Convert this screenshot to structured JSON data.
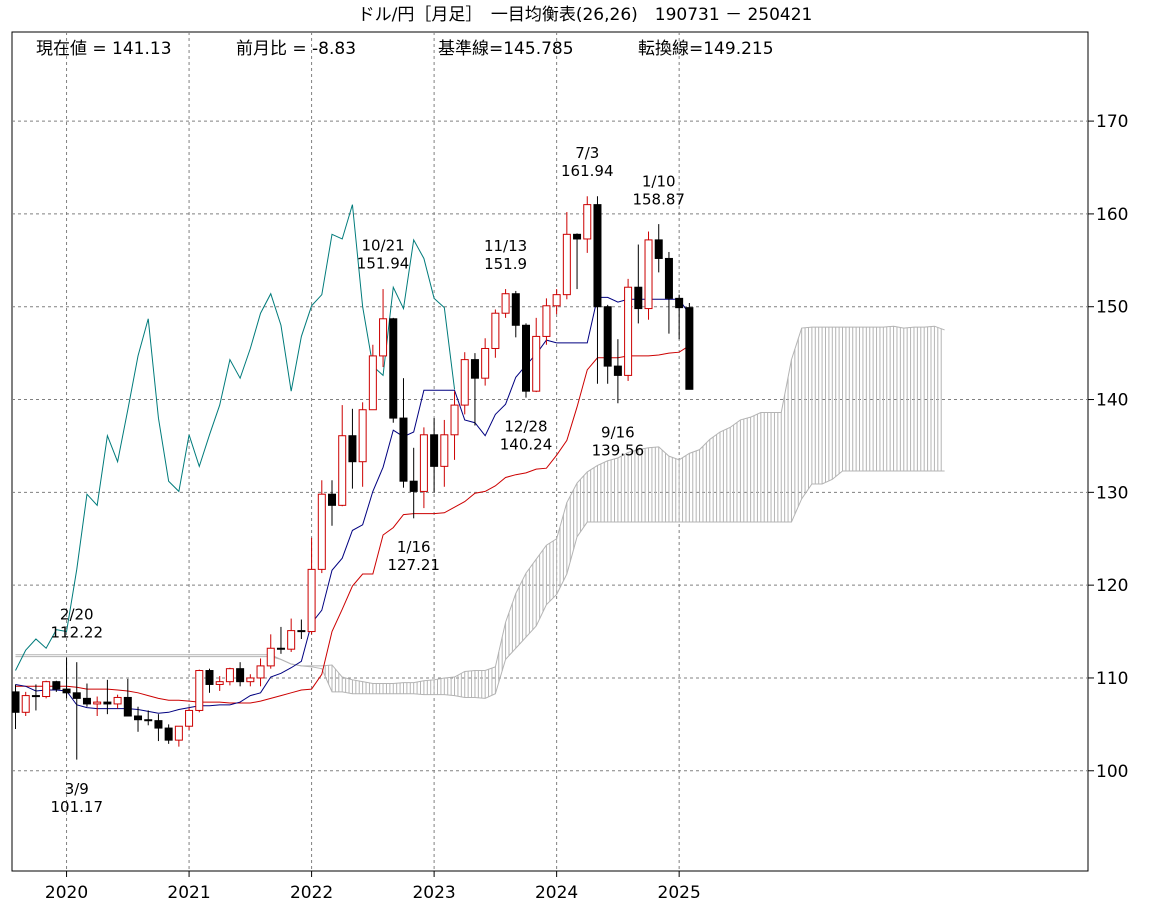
{
  "chart_data": {
    "type": "candlestick",
    "title": "ドル/円［月足］　一目均衡表(26,26)　190731 － 250421",
    "info": {
      "current": "現在値 = 141.13",
      "change": "前月比 = -8.83",
      "kijun": "基準線=145.785",
      "tenkan": "転換線=149.215"
    },
    "x_ticks": [
      "2020",
      "2021",
      "2022",
      "2023",
      "2024",
      "2025"
    ],
    "y_ticks": [
      100,
      110,
      120,
      130,
      140,
      150,
      160,
      170
    ],
    "ylim": [
      89.2,
      179.6
    ],
    "grid": true,
    "colors": {
      "up": "#cc0000",
      "down": "#000000",
      "tenkan": "#000080",
      "kijun": "#cc0000",
      "chikou": "#007b7b",
      "cloud": "#b4b4b4"
    },
    "candles": [
      [
        108.5,
        109.3,
        104.5,
        106.3
      ],
      [
        106.3,
        108.5,
        105.9,
        108.1
      ],
      [
        108.1,
        109.3,
        106.5,
        108.0
      ],
      [
        108.0,
        109.7,
        107.8,
        109.6
      ],
      [
        109.6,
        109.7,
        108.5,
        108.8
      ],
      [
        108.8,
        112.2,
        107.8,
        108.4
      ],
      [
        108.4,
        111.7,
        101.2,
        107.8
      ],
      [
        107.8,
        109.4,
        106.9,
        107.2
      ],
      [
        107.2,
        108.0,
        105.9,
        107.4
      ],
      [
        107.4,
        109.8,
        106.1,
        107.2
      ],
      [
        107.2,
        108.2,
        106.7,
        107.9
      ],
      [
        107.9,
        109.9,
        105.9,
        105.9
      ],
      [
        105.9,
        106.9,
        104.2,
        105.5
      ],
      [
        105.5,
        106.5,
        104.9,
        105.4
      ],
      [
        105.4,
        106.1,
        103.2,
        104.6
      ],
      [
        104.6,
        105.0,
        102.9,
        103.3
      ],
      [
        103.3,
        104.0,
        102.6,
        104.8
      ],
      [
        104.8,
        106.8,
        104.4,
        106.5
      ],
      [
        106.5,
        110.9,
        106.3,
        110.8
      ],
      [
        110.8,
        111.0,
        108.4,
        109.3
      ],
      [
        109.3,
        110.2,
        108.6,
        109.6
      ],
      [
        109.6,
        111.1,
        109.2,
        111.0
      ],
      [
        111.0,
        111.7,
        109.1,
        109.6
      ],
      [
        109.6,
        110.4,
        109.1,
        110.0
      ],
      [
        110.0,
        112.1,
        109.1,
        111.3
      ],
      [
        111.3,
        114.7,
        111.0,
        113.2
      ],
      [
        113.2,
        115.5,
        112.6,
        113.1
      ],
      [
        113.1,
        116.4,
        112.8,
        115.1
      ],
      [
        115.1,
        116.3,
        114.2,
        115.0
      ],
      [
        115.0,
        125.1,
        114.7,
        121.7
      ],
      [
        121.7,
        131.3,
        121.3,
        129.8
      ],
      [
        129.8,
        131.3,
        126.4,
        128.6
      ],
      [
        128.6,
        139.4,
        128.5,
        136.1
      ],
      [
        136.1,
        139.0,
        130.4,
        133.3
      ],
      [
        133.3,
        139.7,
        130.6,
        138.9
      ],
      [
        138.9,
        145.9,
        138.9,
        144.7
      ],
      [
        144.7,
        151.9,
        143.5,
        148.7
      ],
      [
        148.7,
        148.8,
        137.5,
        138.0
      ],
      [
        138.0,
        142.3,
        130.5,
        131.2
      ],
      [
        131.2,
        134.8,
        127.2,
        130.1
      ],
      [
        130.1,
        137.0,
        128.3,
        136.2
      ],
      [
        136.2,
        138.0,
        130.0,
        132.8
      ],
      [
        132.8,
        137.8,
        130.6,
        136.2
      ],
      [
        136.2,
        140.9,
        133.5,
        139.4
      ],
      [
        139.4,
        145.1,
        138.4,
        144.3
      ],
      [
        144.3,
        145.0,
        137.2,
        142.3
      ],
      [
        142.3,
        146.6,
        141.5,
        145.5
      ],
      [
        145.5,
        149.7,
        144.5,
        149.3
      ],
      [
        149.3,
        151.9,
        148.8,
        151.4
      ],
      [
        151.4,
        151.7,
        146.7,
        148.0
      ],
      [
        148.0,
        148.2,
        140.2,
        140.9
      ],
      [
        140.9,
        148.8,
        140.8,
        146.8
      ],
      [
        146.8,
        150.9,
        145.9,
        150.1
      ],
      [
        150.1,
        151.9,
        149.2,
        151.3
      ],
      [
        151.3,
        160.2,
        150.8,
        157.8
      ],
      [
        157.8,
        157.9,
        151.9,
        157.3
      ],
      [
        157.3,
        161.9,
        155.8,
        161.0
      ],
      [
        161.0,
        161.9,
        141.7,
        150.0
      ],
      [
        150.0,
        150.2,
        141.7,
        143.6
      ],
      [
        143.6,
        146.5,
        139.6,
        142.6
      ],
      [
        142.6,
        153.0,
        142.0,
        152.1
      ],
      [
        152.1,
        156.7,
        148.2,
        149.8
      ],
      [
        149.8,
        158.1,
        148.6,
        157.2
      ],
      [
        157.2,
        158.9,
        153.7,
        155.2
      ],
      [
        155.2,
        155.9,
        147.1,
        150.9
      ],
      [
        150.9,
        151.3,
        146.5,
        149.9
      ],
      [
        149.9,
        150.4,
        141.1,
        141.1
      ]
    ],
    "tenkan": [
      109.3,
      109.1,
      108.6,
      108.7,
      108.7,
      108.6,
      107.1,
      106.8,
      106.7,
      106.7,
      106.7,
      106.7,
      106.6,
      106.4,
      106.2,
      106.3,
      106.6,
      106.8,
      107.0,
      107.0,
      107.1,
      107.1,
      107.4,
      108.1,
      108.4,
      110.1,
      110.5,
      111.1,
      111.8,
      115.9,
      117.3,
      121.6,
      122.9,
      125.9,
      126.5,
      130.1,
      132.7,
      136.7,
      136.0,
      136.5,
      141.0,
      141.0,
      141.0,
      141.0,
      137.8,
      137.5,
      136.1,
      138.4,
      139.5,
      142.4,
      143.7,
      144.9,
      146.4,
      146.1,
      146.1,
      146.1,
      146.1,
      151.0,
      151.0,
      150.5,
      150.8,
      150.8,
      150.8,
      150.8,
      150.8,
      150.8,
      149.2
    ],
    "kijun": [
      109.1,
      109.1,
      109.1,
      109.1,
      109.1,
      109.1,
      109.0,
      108.8,
      108.8,
      108.8,
      108.7,
      108.6,
      108.4,
      108.1,
      107.8,
      107.6,
      107.6,
      107.5,
      107.4,
      107.4,
      107.4,
      107.3,
      107.3,
      107.3,
      107.5,
      107.8,
      108.1,
      108.4,
      108.7,
      108.8,
      110.4,
      115.0,
      117.4,
      119.9,
      121.2,
      121.2,
      125.4,
      126.2,
      127.6,
      127.7,
      127.7,
      127.7,
      127.8,
      128.4,
      129.0,
      129.9,
      130.1,
      130.7,
      131.6,
      131.9,
      132.1,
      132.5,
      132.6,
      134.0,
      135.6,
      139.2,
      143.2,
      144.5,
      144.5,
      144.5,
      144.7,
      144.7,
      144.7,
      144.8,
      145.0,
      145.1,
      145.8
    ],
    "chikou": [
      110.8,
      113.0,
      114.2,
      113.2,
      115.2,
      115.0,
      121.7,
      129.8,
      128.6,
      136.1,
      133.3,
      138.9,
      144.7,
      148.7,
      138.0,
      131.2,
      130.1,
      136.2,
      132.8,
      136.2,
      139.4,
      144.3,
      142.3,
      145.5,
      149.3,
      151.4,
      148.0,
      140.9,
      146.8,
      150.1,
      151.3,
      157.8,
      157.3,
      161.0,
      150.0,
      143.6,
      142.6,
      152.1,
      149.8,
      157.2,
      155.2,
      150.9,
      149.9,
      141.1
    ],
    "senkou_a": [
      112.3,
      112.3,
      112.3,
      112.3,
      112.3,
      112.3,
      112.3,
      112.3,
      112.3,
      112.3,
      112.3,
      112.3,
      112.3,
      112.3,
      112.3,
      112.3,
      112.3,
      112.3,
      112.3,
      112.3,
      112.3,
      112.3,
      112.3,
      112.3,
      112.3,
      112.3,
      112.0,
      111.5,
      111.3,
      111.3,
      111.3,
      111.4,
      110.1,
      109.8,
      109.6,
      109.4,
      109.4,
      109.4,
      109.5,
      109.5,
      109.7,
      109.8,
      110.0,
      110.1,
      110.7,
      110.8,
      110.8,
      111.2,
      116.0,
      119.1,
      121.3,
      122.8,
      124.3,
      125.0,
      128.9,
      131.0,
      132.2,
      132.9,
      133.4,
      133.7,
      134.3,
      134.6,
      134.8,
      134.9,
      133.9,
      133.5,
      134.2,
      134.6,
      135.7,
      136.5,
      137.0,
      137.8,
      138.1,
      138.6,
      138.6,
      138.6,
      144.3,
      147.7,
      147.8,
      147.8,
      147.8,
      147.8,
      147.8,
      147.8,
      147.8,
      147.8,
      147.9,
      147.7,
      147.8,
      147.8,
      147.9,
      147.5
    ],
    "senkou_b": [
      112.5,
      112.5,
      112.5,
      112.5,
      112.5,
      112.5,
      112.5,
      112.5,
      112.5,
      112.5,
      112.5,
      112.5,
      112.5,
      112.5,
      112.5,
      112.5,
      112.5,
      112.5,
      112.5,
      112.5,
      112.5,
      112.5,
      112.5,
      112.5,
      112.5,
      112.5,
      112.0,
      111.5,
      111.3,
      111.2,
      111.0,
      108.5,
      108.5,
      108.3,
      108.3,
      108.3,
      108.3,
      108.3,
      108.3,
      108.3,
      108.2,
      108.2,
      108.2,
      108.1,
      107.9,
      107.9,
      107.8,
      108.3,
      112.0,
      113.2,
      114.4,
      115.6,
      117.9,
      119.0,
      121.2,
      125.2,
      126.8,
      126.8,
      126.8,
      126.8,
      126.8,
      126.8,
      126.8,
      126.8,
      126.8,
      126.8,
      126.8,
      126.8,
      126.8,
      126.8,
      126.8,
      126.8,
      126.8,
      126.8,
      126.8,
      126.8,
      126.8,
      129.3,
      130.9,
      130.9,
      131.4,
      132.3,
      132.3,
      132.3,
      132.3,
      132.3,
      132.3,
      132.3,
      132.3,
      132.3,
      132.3,
      132.3
    ],
    "annotations": [
      {
        "date": "2/20",
        "value": "112.22",
        "index": 6,
        "y": 112.22,
        "pos": "above"
      },
      {
        "date": "3/9",
        "value": "101.17",
        "index": 6,
        "y": 101.17,
        "pos": "below"
      },
      {
        "date": "10/21",
        "value": "151.94",
        "index": 36,
        "y": 151.94,
        "pos": "above"
      },
      {
        "date": "1/16",
        "value": "127.21",
        "index": 39,
        "y": 127.21,
        "pos": "below"
      },
      {
        "date": "11/13",
        "value": "151.9",
        "index": 48,
        "y": 151.9,
        "pos": "above"
      },
      {
        "date": "12/28",
        "value": "140.24",
        "index": 50,
        "y": 140.24,
        "pos": "below"
      },
      {
        "date": "7/3",
        "value": "161.94",
        "index": 56,
        "y": 161.94,
        "pos": "above"
      },
      {
        "date": "9/16",
        "value": "139.56",
        "index": 59,
        "y": 139.56,
        "pos": "below"
      },
      {
        "date": "1/10",
        "value": "158.87",
        "index": 63,
        "y": 158.87,
        "pos": "above"
      }
    ]
  }
}
